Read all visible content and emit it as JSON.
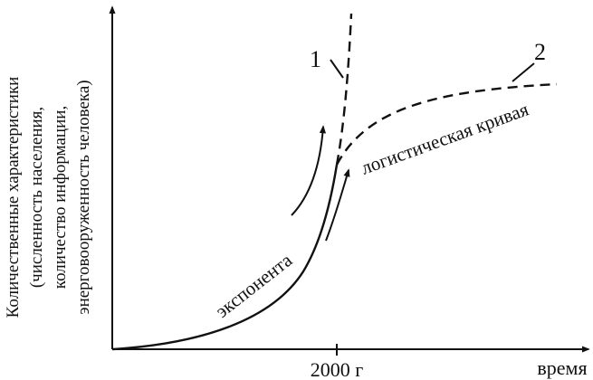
{
  "diagram": {
    "y_axis_label": {
      "line1": "Количественные характеристики",
      "line2": "(численность населения,",
      "line3": "количество информации,",
      "line4": "энерговооруженность человека)"
    },
    "x_axis_label": "время",
    "x_tick_label": "2000 г",
    "curve_labels": {
      "exponent": "экспонента",
      "logistic": "логистическая кривая",
      "marker_1": "1",
      "marker_2": "2"
    },
    "colors": {
      "ink": "#111111",
      "background": "#ffffff"
    }
  }
}
